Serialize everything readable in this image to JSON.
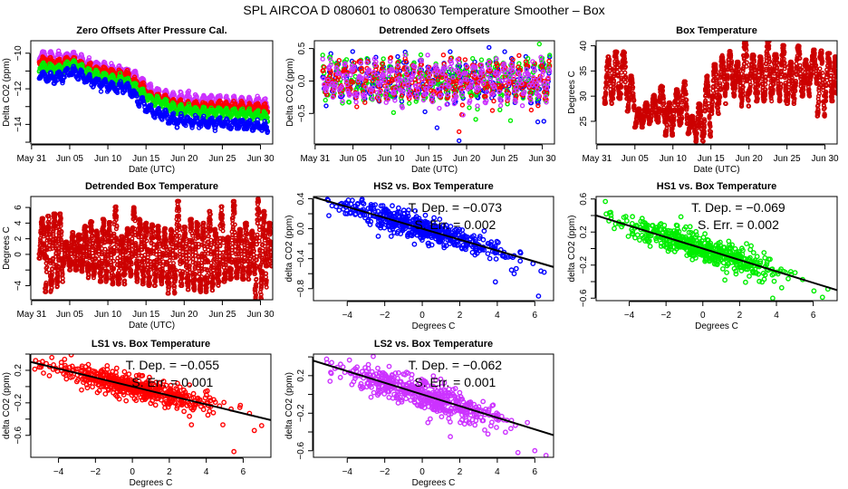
{
  "main_title": "SPL   AIRCOA D   080601 to 080630   Temperature Smoother – Box",
  "colors": {
    "HS2": "#0000ff",
    "HS1": "#00ee00",
    "LS1": "#ff0000",
    "LS2": "#cc33ff",
    "box_temp": "#cc0000",
    "fit_line": "#000000"
  },
  "chart_data": [
    {
      "id": "zero-offsets",
      "type": "scatter",
      "title": "Zero Offsets After Pressure Cal.",
      "xlabel": "Date (UTC)",
      "ylabel": "Delta CO2 (ppm)",
      "x_ticks": [
        "May 31",
        "Jun 05",
        "Jun 10",
        "Jun 15",
        "Jun 20",
        "Jun 25",
        "Jun 30"
      ],
      "x_tick_days": [
        0,
        5,
        10,
        15,
        20,
        25,
        30
      ],
      "xlim": [
        -0.1,
        31.6
      ],
      "y_ticks": [
        "-10",
        "-12",
        "-14"
      ],
      "y_tick_values": [
        -10,
        -11,
        -12,
        -13,
        -14,
        -15
      ],
      "y_labeled": [
        -10,
        -12,
        -14
      ],
      "ylim": [
        -15.1,
        -9.3
      ],
      "series": [
        {
          "name": "LS2",
          "day": [
            1,
            2,
            3,
            4,
            5,
            6,
            7,
            8,
            9,
            10,
            11,
            12,
            13,
            14,
            15,
            16,
            17,
            18,
            19,
            20,
            21,
            22,
            23,
            24,
            25,
            26,
            27,
            28,
            29,
            30,
            31
          ],
          "mean": [
            -10.1,
            -10.2,
            -10.3,
            -10.3,
            -10.2,
            -10.3,
            -10.6,
            -10.7,
            -10.8,
            -10.9,
            -11.0,
            -11.0,
            -11.2,
            -11.5,
            -11.9,
            -12.2,
            -12.3,
            -12.5,
            -12.6,
            -12.6,
            -12.6,
            -12.7,
            -12.7,
            -12.7,
            -12.7,
            -12.8,
            -12.8,
            -12.8,
            -12.8,
            -12.8,
            -13.0
          ],
          "spread": 0.45
        },
        {
          "name": "LS1",
          "day": [
            1,
            2,
            3,
            4,
            5,
            6,
            7,
            8,
            9,
            10,
            11,
            12,
            13,
            14,
            15,
            16,
            17,
            18,
            19,
            20,
            21,
            22,
            23,
            24,
            25,
            26,
            27,
            28,
            29,
            30,
            31
          ],
          "mean": [
            -10.4,
            -10.5,
            -10.6,
            -10.6,
            -10.4,
            -10.5,
            -10.8,
            -10.9,
            -11.0,
            -11.1,
            -11.2,
            -11.2,
            -11.4,
            -11.8,
            -12.1,
            -12.5,
            -12.5,
            -12.7,
            -12.9,
            -12.9,
            -12.9,
            -13.0,
            -13.0,
            -13.0,
            -13.0,
            -13.0,
            -13.0,
            -13.1,
            -13.1,
            -13.1,
            -13.2
          ],
          "spread": 0.3
        },
        {
          "name": "HS1",
          "day": [
            1,
            2,
            3,
            4,
            5,
            6,
            7,
            8,
            9,
            10,
            11,
            12,
            13,
            14,
            15,
            16,
            17,
            18,
            19,
            20,
            21,
            22,
            23,
            24,
            25,
            26,
            27,
            28,
            29,
            30,
            31
          ],
          "mean": [
            -10.8,
            -10.8,
            -10.9,
            -10.9,
            -10.6,
            -10.7,
            -11.0,
            -11.2,
            -11.3,
            -11.4,
            -11.5,
            -11.5,
            -11.7,
            -12.1,
            -12.4,
            -12.7,
            -12.8,
            -13.0,
            -13.2,
            -13.2,
            -13.2,
            -13.3,
            -13.3,
            -13.3,
            -13.3,
            -13.4,
            -13.4,
            -13.4,
            -13.5,
            -13.5,
            -13.6
          ],
          "spread": 0.3
        },
        {
          "name": "HS2",
          "day": [
            1,
            2,
            3,
            4,
            5,
            6,
            7,
            8,
            9,
            10,
            11,
            12,
            13,
            14,
            15,
            16,
            17,
            18,
            19,
            20,
            21,
            22,
            23,
            24,
            25,
            26,
            27,
            28,
            29,
            30,
            31
          ],
          "mean": [
            -11.2,
            -11.3,
            -11.4,
            -11.3,
            -11.0,
            -11.1,
            -11.4,
            -11.6,
            -11.7,
            -11.8,
            -11.9,
            -11.9,
            -12.1,
            -12.6,
            -13.0,
            -13.3,
            -13.4,
            -13.6,
            -13.8,
            -13.8,
            -13.8,
            -13.9,
            -13.9,
            -13.9,
            -13.9,
            -14.0,
            -14.0,
            -14.0,
            -14.1,
            -14.1,
            -14.3
          ],
          "spread": 0.35
        }
      ]
    },
    {
      "id": "detrended-zero-offsets",
      "type": "scatter",
      "title": "Detrended Zero Offsets",
      "xlabel": "Date (UTC)",
      "ylabel": "Delta CO2 (ppm)",
      "x_ticks": [
        "May 31",
        "Jun 05",
        "Jun 10",
        "Jun 15",
        "Jun 20",
        "Jun 25",
        "Jun 30"
      ],
      "x_tick_days": [
        0,
        5,
        10,
        15,
        20,
        25,
        30
      ],
      "xlim": [
        -0.1,
        31.6
      ],
      "y_ticks": [
        "0.5",
        "0.0",
        "-0.5"
      ],
      "y_tick_values": [
        0.5,
        0.0,
        -0.5
      ],
      "ylim": [
        -0.97,
        0.62
      ],
      "series_names": [
        "HS2",
        "HS1",
        "LS1",
        "LS2"
      ],
      "typical_range": [
        -0.45,
        0.4
      ],
      "outliers": [
        {
          "series": "HS2",
          "day": 19.0,
          "value": -0.92
        },
        {
          "series": "LS1",
          "day": 19.0,
          "value": -0.78
        },
        {
          "series": "HS2",
          "day": 16.1,
          "value": -0.72
        },
        {
          "series": "HS1",
          "day": 29.6,
          "value": 0.57
        },
        {
          "series": "HS2",
          "day": 29.4,
          "value": -0.63
        },
        {
          "series": "HS2",
          "day": 30.2,
          "value": -0.62
        },
        {
          "series": "HS1",
          "day": 21.2,
          "value": -0.59
        },
        {
          "series": "HS1",
          "day": 25.8,
          "value": -0.61
        }
      ]
    },
    {
      "id": "box-temperature",
      "type": "scatter",
      "title": "Box Temperature",
      "xlabel": "Date (UTC)",
      "ylabel": "Degrees C",
      "x_ticks": [
        "May 31",
        "Jun 05",
        "Jun 10",
        "Jun 15",
        "Jun 20",
        "Jun 25",
        "Jun 30"
      ],
      "x_tick_days": [
        0,
        5,
        10,
        15,
        20,
        25,
        30
      ],
      "xlim": [
        -0.1,
        31.6
      ],
      "y_ticks": [
        "40",
        "35",
        "30",
        "25"
      ],
      "y_tick_values": [
        40,
        35,
        30,
        25
      ],
      "ylim": [
        20.5,
        41.0
      ],
      "daily": {
        "day": [
          1,
          2,
          3,
          4,
          5,
          6,
          7,
          8,
          9,
          10,
          11,
          12,
          13,
          14,
          15,
          16,
          17,
          18,
          19,
          20,
          21,
          22,
          23,
          24,
          25,
          26,
          27,
          28,
          29,
          30,
          31
        ],
        "min": [
          28.5,
          29.5,
          29.5,
          27.0,
          23.8,
          24.5,
          25.0,
          24.8,
          22.2,
          24.2,
          24.5,
          22.5,
          21.0,
          22.0,
          26.5,
          28.5,
          31.5,
          30.0,
          28.0,
          30.5,
          29.0,
          29.0,
          30.5,
          29.0,
          28.5,
          31.0,
          30.0,
          32.5,
          26.0,
          29.0,
          30.5
        ],
        "max": [
          37.8,
          38.8,
          38.8,
          34.0,
          27.5,
          28.7,
          30.2,
          32.0,
          28.7,
          31.3,
          32.9,
          26.0,
          28.5,
          34.0,
          36.3,
          38.1,
          38.9,
          36.8,
          40.7,
          38.2,
          37.8,
          41.0,
          38.3,
          40.1,
          36.8,
          40.0,
          37.2,
          39.2,
          39.0,
          38.5,
          37.8
        ]
      }
    },
    {
      "id": "detrended-box-temperature",
      "type": "scatter",
      "title": "Detrended Box Temperature",
      "xlabel": "Date (UTC)",
      "ylabel": "Degrees C",
      "x_ticks": [
        "May 31",
        "Jun 05",
        "Jun 10",
        "Jun 15",
        "Jun 20",
        "Jun 25",
        "Jun 30"
      ],
      "x_tick_days": [
        0,
        5,
        10,
        15,
        20,
        25,
        30
      ],
      "xlim": [
        -0.1,
        31.6
      ],
      "y_ticks": [
        "6",
        "4",
        "2",
        "0",
        "-4"
      ],
      "y_tick_values": [
        6,
        4,
        2,
        0,
        -2,
        -4
      ],
      "y_labeled": [
        6,
        4,
        2,
        0,
        -4
      ],
      "ylim": [
        -5.8,
        7.4
      ],
      "daily": {
        "day": [
          1,
          1.8,
          2.6,
          3.4,
          4.1,
          5.0,
          5.8,
          6.6,
          7.4,
          8.2,
          9.0,
          9.8,
          10.6,
          11.4,
          12.2,
          13.0,
          13.8,
          14.6,
          15.4,
          16.2,
          17.0,
          17.9,
          18.8,
          19.6,
          20.5,
          21.3,
          22.1,
          22.9,
          23.7,
          24.5,
          25.3,
          26.1,
          26.9,
          27.7,
          28.5,
          29.3,
          30.1,
          30.8
        ],
        "min": [
          -0.5,
          -4.8,
          -4.3,
          -3.5,
          -1.5,
          -2.0,
          -2.0,
          -2.2,
          -3.0,
          -2.5,
          -3.5,
          -3.2,
          -3.8,
          -3.8,
          -2.5,
          -2.8,
          -3.5,
          -3.8,
          -4.0,
          -3.5,
          -3.8,
          -5.0,
          -3.5,
          -4.0,
          -4.5,
          -4.6,
          -4.8,
          -4.6,
          -4.0,
          -3.5,
          -3.2,
          -3.0,
          -3.0,
          -3.2,
          -2.5,
          -5.7,
          -4.2,
          -1.5
        ],
        "max": [
          4.6,
          4.9,
          5.2,
          5.2,
          1.6,
          2.8,
          2.5,
          3.6,
          4.2,
          3.0,
          4.5,
          4.1,
          6.1,
          2.3,
          3.3,
          6.0,
          4.5,
          4.0,
          3.8,
          3.6,
          3.3,
          3.2,
          6.8,
          3.5,
          4.5,
          4.1,
          4.0,
          5.5,
          3.2,
          6.1,
          2.2,
          6.8,
          3.2,
          4.0,
          3.0,
          7.1,
          5.5,
          4.0
        ]
      }
    },
    {
      "id": "hs2-vs-box-temperature",
      "type": "scatter",
      "title": "HS2 vs. Box Temperature",
      "series": "HS2",
      "xlabel": "Degrees C",
      "ylabel": "delta CO2 (ppm)",
      "x_ticks": [
        "-4",
        "-2",
        "0",
        "2",
        "4",
        "6"
      ],
      "x_tick_values": [
        -4,
        -2,
        0,
        2,
        4,
        6
      ],
      "xlim": [
        -5.8,
        7.0
      ],
      "y_ticks": [
        "0.4",
        "0.0",
        "-0.4",
        "-0.8"
      ],
      "y_tick_values": [
        0.4,
        0.2,
        0.0,
        -0.2,
        -0.4,
        -0.6,
        -0.8
      ],
      "y_labeled": [
        0.4,
        0.0,
        -0.4,
        -0.8
      ],
      "ylim": [
        -0.96,
        0.43
      ],
      "slope": -0.073,
      "intercept": 0.0,
      "scatter_sd": 0.08,
      "annotation": {
        "line1": "T. Dep. =  −0.073",
        "line2": "S. Err. =  0.002"
      },
      "outliers": [
        [
          3.9,
          -0.71
        ],
        [
          6.2,
          -0.9
        ],
        [
          4.9,
          -0.6
        ],
        [
          6.5,
          -0.58
        ]
      ]
    },
    {
      "id": "hs1-vs-box-temperature",
      "type": "scatter",
      "title": "HS1 vs. Box Temperature",
      "series": "HS1",
      "xlabel": "Degrees C",
      "ylabel": "delta CO2 (ppm)",
      "x_ticks": [
        "-4",
        "-2",
        "0",
        "2",
        "4",
        "6"
      ],
      "x_tick_values": [
        -4,
        -2,
        0,
        2,
        4,
        6
      ],
      "xlim": [
        -5.8,
        7.3
      ],
      "y_ticks": [
        "0.6",
        "0.2",
        "-0.2",
        "-0.6"
      ],
      "y_tick_values": [
        0.6,
        0.4,
        0.2,
        0.0,
        -0.2,
        -0.4,
        -0.6
      ],
      "y_labeled": [
        0.6,
        0.2,
        -0.2,
        -0.6
      ],
      "ylim": [
        -0.63,
        0.63
      ],
      "slope": -0.069,
      "intercept": 0.0,
      "scatter_sd": 0.08,
      "annotation": {
        "line1": "T. Dep. =  −0.069",
        "line2": "S. Err. =  0.002"
      },
      "outliers": [
        [
          -5.3,
          0.57
        ],
        [
          1.2,
          -0.38
        ],
        [
          3.8,
          -0.6
        ],
        [
          6.5,
          -0.59
        ],
        [
          6.8,
          -0.49
        ]
      ]
    },
    {
      "id": "ls1-vs-box-temperature",
      "type": "scatter",
      "title": "LS1 vs. Box Temperature",
      "series": "LS1",
      "xlabel": "Degrees C",
      "ylabel": "delta CO2 (ppm)",
      "x_ticks": [
        "-4",
        "-2",
        "0",
        "2",
        "4",
        "6"
      ],
      "x_tick_values": [
        -4,
        -2,
        0,
        2,
        4,
        6
      ],
      "xlim": [
        -5.5,
        7.5
      ],
      "y_ticks": [
        "0.2",
        "-0.2",
        "-0.6"
      ],
      "y_tick_values": [
        0.4,
        0.2,
        0.0,
        -0.2,
        -0.4,
        -0.6
      ],
      "y_labeled": [
        0.2,
        -0.2,
        -0.6
      ],
      "ylim": [
        -0.87,
        0.4
      ],
      "slope": -0.055,
      "intercept": 0.0,
      "scatter_sd": 0.07,
      "annotation": {
        "line1": "T. Dep. =  −0.055",
        "line2": "S. Err. =  0.001"
      },
      "outliers": [
        [
          5.5,
          -0.8
        ],
        [
          6.6,
          -0.54
        ],
        [
          7.0,
          -0.48
        ],
        [
          3.2,
          -0.47
        ],
        [
          4.9,
          -0.47
        ]
      ]
    },
    {
      "id": "ls2-vs-box-temperature",
      "type": "scatter",
      "title": "LS2 vs. Box Temperature",
      "series": "LS2",
      "xlabel": "Degrees C",
      "ylabel": "delta CO2 (ppm)",
      "x_ticks": [
        "-4",
        "-2",
        "0",
        "2",
        "4",
        "6"
      ],
      "x_tick_values": [
        -4,
        -2,
        0,
        2,
        4,
        6
      ],
      "xlim": [
        -5.8,
        7.0
      ],
      "y_ticks": [
        "0.2",
        "-0.2",
        "-0.6"
      ],
      "y_tick_values": [
        0.4,
        0.2,
        0.0,
        -0.2,
        -0.4,
        -0.6
      ],
      "y_labeled": [
        0.2,
        -0.2,
        -0.6
      ],
      "ylim": [
        -0.67,
        0.43
      ],
      "slope": -0.062,
      "intercept": 0.0,
      "scatter_sd": 0.08,
      "annotation": {
        "line1": "T. Dep. =  −0.062",
        "line2": "S. Err. =  0.001"
      },
      "outliers": [
        [
          1.5,
          -0.45
        ],
        [
          5.1,
          -0.62
        ],
        [
          6.0,
          -0.6
        ],
        [
          6.6,
          -0.65
        ],
        [
          0.3,
          -0.3
        ]
      ]
    }
  ]
}
